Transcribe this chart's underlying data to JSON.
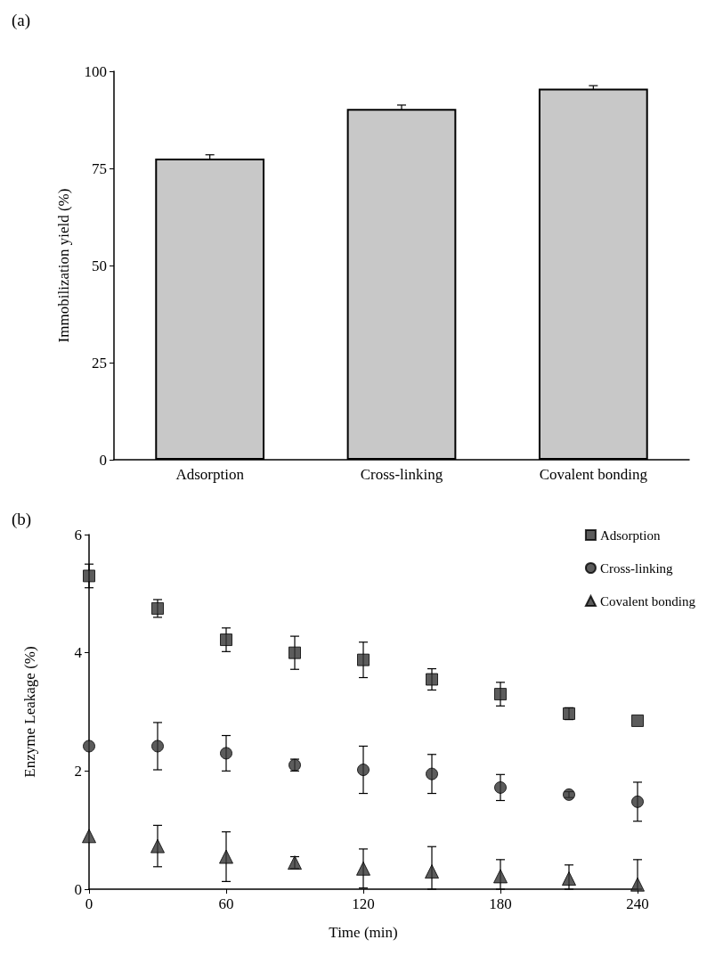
{
  "chart_data": [
    {
      "type": "bar",
      "title": "(a)",
      "ylabel": "Immobilization yield (%)",
      "categories": [
        "Adsorption",
        "Cross-linking",
        "Covalent bonding"
      ],
      "values": [
        77.5,
        90.3,
        95.5
      ],
      "errors": [
        1,
        1,
        0.8
      ],
      "color": "#c8c8c8",
      "ylim": [
        0,
        100
      ],
      "yticks": [
        0,
        25,
        50,
        75,
        100
      ],
      "grid": false,
      "legend": false
    },
    {
      "type": "scatter",
      "title": "(b)",
      "xlabel": "Time (min)",
      "ylabel": "Enzyme Leakage (%)",
      "x": [
        0,
        30,
        60,
        90,
        120,
        150,
        180,
        210,
        240
      ],
      "series": [
        {
          "name": "Adsorption",
          "color": "#333333",
          "marker": "square",
          "values": [
            5.3,
            4.75,
            4.22,
            4.0,
            3.88,
            3.55,
            3.3,
            2.97,
            2.85
          ],
          "errors": [
            0.2,
            0.15,
            0.2,
            0.28,
            0.3,
            0.18,
            0.2,
            0.1,
            null
          ]
        },
        {
          "name": "Cross-linking",
          "color": "#333333",
          "marker": "circle",
          "values": [
            2.42,
            2.42,
            2.3,
            2.1,
            2.02,
            1.95,
            1.72,
            1.6,
            1.48
          ],
          "errors": [
            null,
            0.4,
            0.3,
            0.1,
            0.4,
            0.33,
            0.22,
            0.05,
            0.33
          ]
        },
        {
          "name": "Covalent bonding",
          "color": "#333333",
          "marker": "triangle",
          "values": [
            0.9,
            0.73,
            0.55,
            0.45,
            0.35,
            0.3,
            0.22,
            0.18,
            0.08
          ],
          "errors": [
            null,
            0.35,
            0.42,
            0.1,
            0.33,
            [
              0,
              0.72
            ],
            [
              0,
              0.5
            ],
            [
              0,
              0.41
            ],
            [
              0,
              0.5
            ]
          ]
        }
      ],
      "xlim": [
        0,
        240
      ],
      "xticks": [
        0,
        60,
        120,
        180,
        240
      ],
      "ylim": [
        0,
        6
      ],
      "yticks": [
        0,
        2,
        4,
        6
      ],
      "grid": false,
      "legend": "top right"
    }
  ]
}
